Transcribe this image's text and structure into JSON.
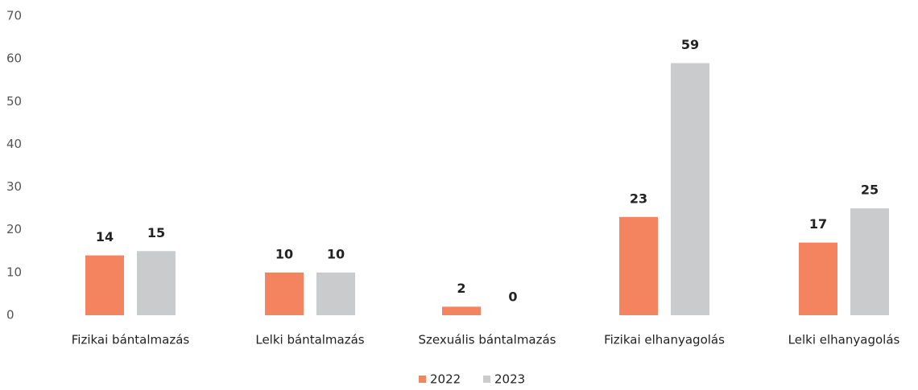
{
  "chart_data": {
    "type": "bar",
    "categories": [
      "Fizikai bántalmazás",
      "Lelki bántalmazás",
      "Szexuális bántalmazás",
      "Fizikai elhanyagolás",
      "Lelki elhanyagolás"
    ],
    "series": [
      {
        "name": "2022",
        "color": "#f4845f",
        "values": [
          14,
          10,
          2,
          23,
          17
        ]
      },
      {
        "name": "2023",
        "color": "#c9cbcc",
        "values": [
          15,
          10,
          0,
          59,
          25
        ]
      }
    ],
    "ylim": [
      0,
      70
    ],
    "yticks": [
      0,
      10,
      20,
      30,
      40,
      50,
      60,
      70
    ],
    "grid": false,
    "legend": "bottom"
  }
}
